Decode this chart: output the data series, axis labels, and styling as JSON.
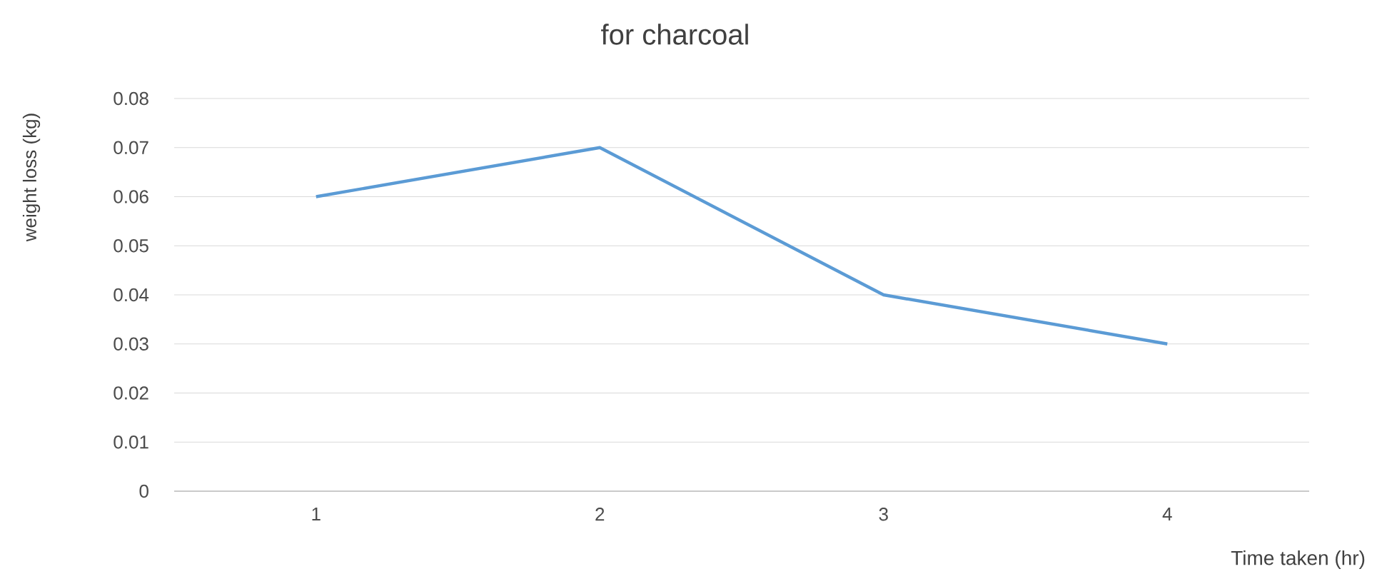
{
  "chart_data": {
    "type": "line",
    "title": "for charcoal",
    "xlabel": "Time taken (hr)",
    "ylabel": "weight loss (kg)",
    "categories": [
      "1",
      "2",
      "3",
      "4"
    ],
    "series": [
      {
        "color": "#5b9bd5",
        "values": [
          0.06,
          0.07,
          0.04,
          0.03
        ]
      }
    ],
    "ylim": [
      0,
      0.08
    ],
    "yticks": [
      0,
      0.01,
      0.02,
      0.03,
      0.04,
      0.05,
      0.06,
      0.07,
      0.08
    ],
    "grid": "y",
    "marker": "none",
    "line_style": "solid"
  }
}
